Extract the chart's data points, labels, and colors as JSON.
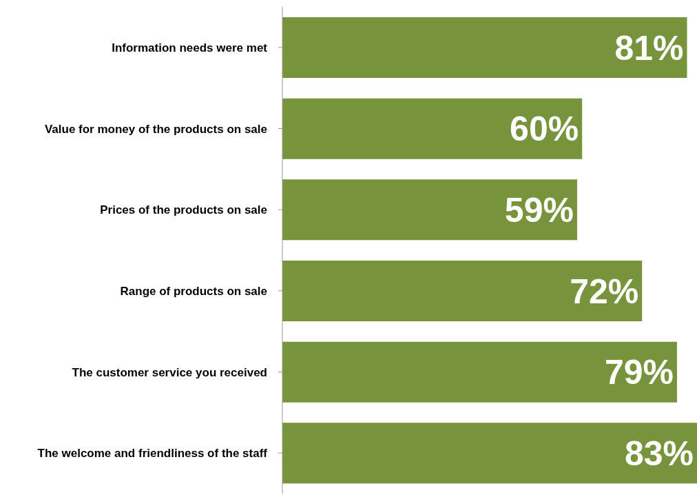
{
  "chart_data": {
    "type": "bar",
    "orientation": "horizontal",
    "categories": [
      "Information needs were met",
      "Value for money of the products on sale",
      "Prices of the products on sale",
      "Range of products on sale",
      "The customer service you received",
      "The welcome and friendliness of the staff"
    ],
    "values": [
      81,
      60,
      59,
      72,
      79,
      83
    ],
    "value_labels": [
      "81%",
      "60%",
      "59%",
      "72%",
      "79%",
      "83%"
    ],
    "color": "#77933c"
  }
}
